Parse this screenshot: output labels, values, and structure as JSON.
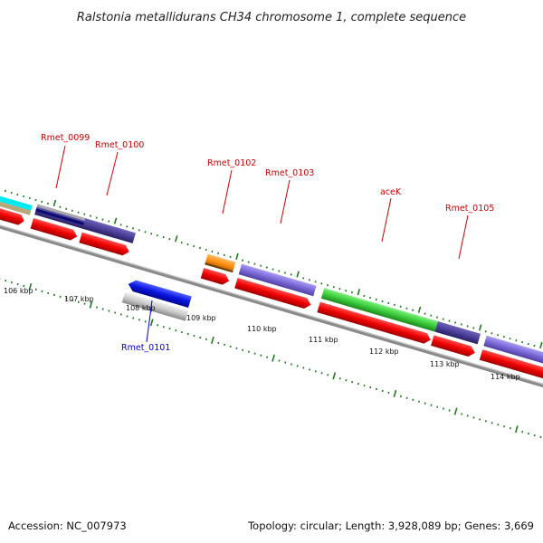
{
  "title": "Ralstonia metallidurans CH34 chromosome 1, complete sequence",
  "footer": {
    "accession": "Accession: NC_007973",
    "info": "Topology: circular; Length: 3,928,089 bp; Genes: 3,669"
  },
  "colors": {
    "tick": "#1f7a1f",
    "backbone": "#8a8a8a",
    "label_plus": "#cc0000",
    "label_minus": "#0000cc"
  },
  "kbp_labels": [
    "106 kbp",
    "107 kbp",
    "108 kbp",
    "109 kbp",
    "110 kbp",
    "111 kbp",
    "112 kbp",
    "113 kbp",
    "114 kbp"
  ],
  "genes": [
    {
      "name": "Rmet_0099",
      "strand": "+",
      "color": "#1a1aa0"
    },
    {
      "name": "Rmet_0100",
      "strand": "+",
      "color": "#4a3f9a"
    },
    {
      "name": "Rmet_0101",
      "strand": "-",
      "color": "#0a14e0"
    },
    {
      "name": "Rmet_0102",
      "strand": "+",
      "color": "#ff8c10"
    },
    {
      "name": "Rmet_0103",
      "strand": "+",
      "color": "#7b68d8"
    },
    {
      "name": "aceK",
      "strand": "+",
      "color": "#3ccc3c"
    },
    {
      "name": "Rmet_0105",
      "strand": "+",
      "color": "#4a3f9a"
    }
  ]
}
